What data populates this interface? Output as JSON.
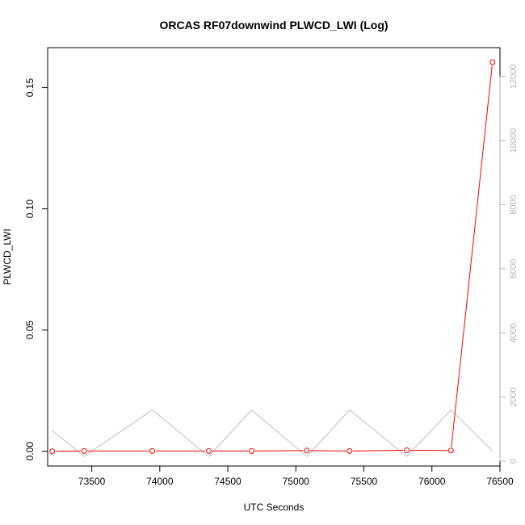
{
  "chart_data": {
    "type": "line",
    "title": "ORCAS RF07downwind PLWCD_LWI (Log)",
    "xlabel": "UTC Seconds",
    "ylabel": "PLWCD_LWI",
    "xlim": [
      73176,
      76500
    ],
    "ylim": [
      -0.0061,
      0.1665
    ],
    "y2lim": [
      -150,
      12900
    ],
    "x_ticks": [
      73500,
      74000,
      74500,
      75000,
      75500,
      76000,
      76500
    ],
    "y_ticks": [
      0.0,
      0.05,
      0.1,
      0.15
    ],
    "y_tick_labels": [
      "0.00",
      "0.05",
      "0.10",
      "0.15"
    ],
    "y2_ticks": [
      0,
      2000,
      4000,
      6000,
      8000,
      10000,
      12000
    ],
    "grid": false,
    "series": [
      {
        "color": "#ff0000",
        "axis": "left",
        "markers": true,
        "x": [
          73210,
          73445,
          73945,
          74360,
          74675,
          75080,
          75395,
          75815,
          76140,
          76445
        ],
        "y": [
          0.0,
          0.0001,
          0.0001,
          0.0001,
          0.0001,
          0.0003,
          0.0001,
          0.0004,
          0.0003,
          0.1605
        ]
      },
      {
        "color": "#bebebe",
        "axis": "right",
        "markers": false,
        "x": [
          73210,
          73445,
          73945,
          74360,
          74675,
          75080,
          75395,
          75815,
          76140,
          76445
        ],
        "y": [
          950,
          150,
          1600,
          150,
          1600,
          150,
          1600,
          150,
          1600,
          320
        ]
      }
    ]
  }
}
